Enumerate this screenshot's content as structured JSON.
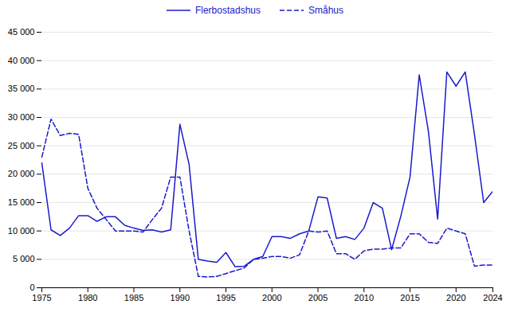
{
  "chart_data": {
    "type": "line",
    "x": [
      1975,
      1976,
      1977,
      1978,
      1979,
      1980,
      1981,
      1982,
      1983,
      1984,
      1985,
      1986,
      1987,
      1988,
      1989,
      1990,
      1991,
      1992,
      1993,
      1994,
      1995,
      1996,
      1997,
      1998,
      1999,
      2000,
      2001,
      2002,
      2003,
      2004,
      2005,
      2006,
      2007,
      2008,
      2009,
      2010,
      2011,
      2012,
      2013,
      2014,
      2015,
      2016,
      2017,
      2018,
      2019,
      2020,
      2021,
      2022,
      2023,
      2024
    ],
    "series": [
      {
        "name": "Flerbostadshus",
        "color": "#1a1acc",
        "line_style": "solid",
        "values": [
          22000,
          10200,
          9200,
          10500,
          12700,
          12700,
          11700,
          12500,
          12500,
          11000,
          10500,
          10100,
          10200,
          9800,
          10200,
          28800,
          21700,
          5000,
          4700,
          4500,
          6200,
          3700,
          3800,
          5000,
          5500,
          9000,
          9000,
          8700,
          9500,
          10000,
          16000,
          15800,
          8700,
          9000,
          8500,
          10500,
          15000,
          14000,
          6700,
          12600,
          19500,
          37500,
          27500,
          12100,
          38000,
          35500,
          38000,
          27000,
          15000,
          17000
        ]
      },
      {
        "name": "Småhus",
        "color": "#1a1acc",
        "line_style": "dashed",
        "values": [
          23000,
          29700,
          26800,
          27200,
          27000,
          17500,
          14000,
          12000,
          10000,
          10000,
          10000,
          9800,
          12000,
          14000,
          19500,
          19500,
          10000,
          2000,
          1900,
          2000,
          2500,
          3000,
          3500,
          5000,
          5200,
          5500,
          5500,
          5200,
          5800,
          10000,
          9800,
          10000,
          6000,
          6000,
          5000,
          6500,
          6800,
          6800,
          7000,
          7000,
          9500,
          9500,
          8000,
          7800,
          10500,
          10000,
          9500,
          3800,
          4000,
          4000
        ]
      }
    ],
    "xlim": [
      1975,
      2024
    ],
    "xticks": [
      1975,
      1980,
      1985,
      1990,
      1995,
      2000,
      2005,
      2010,
      2015,
      2020,
      2024
    ],
    "ylim": [
      0,
      45000
    ],
    "yticks": [
      0,
      {
        "value": 5000,
        "label": "5 000"
      },
      {
        "value": 10000,
        "label": "10 000"
      },
      {
        "value": 15000,
        "label": "15 000"
      },
      {
        "value": 20000,
        "label": "20 000"
      },
      {
        "value": 25000,
        "label": "25 000"
      },
      {
        "value": 30000,
        "label": "30 000"
      },
      {
        "value": 35000,
        "label": "35 000"
      },
      {
        "value": 40000,
        "label": "40 000"
      },
      {
        "value": 45000,
        "label": "45 000"
      }
    ],
    "grid": true,
    "legend": "top"
  }
}
